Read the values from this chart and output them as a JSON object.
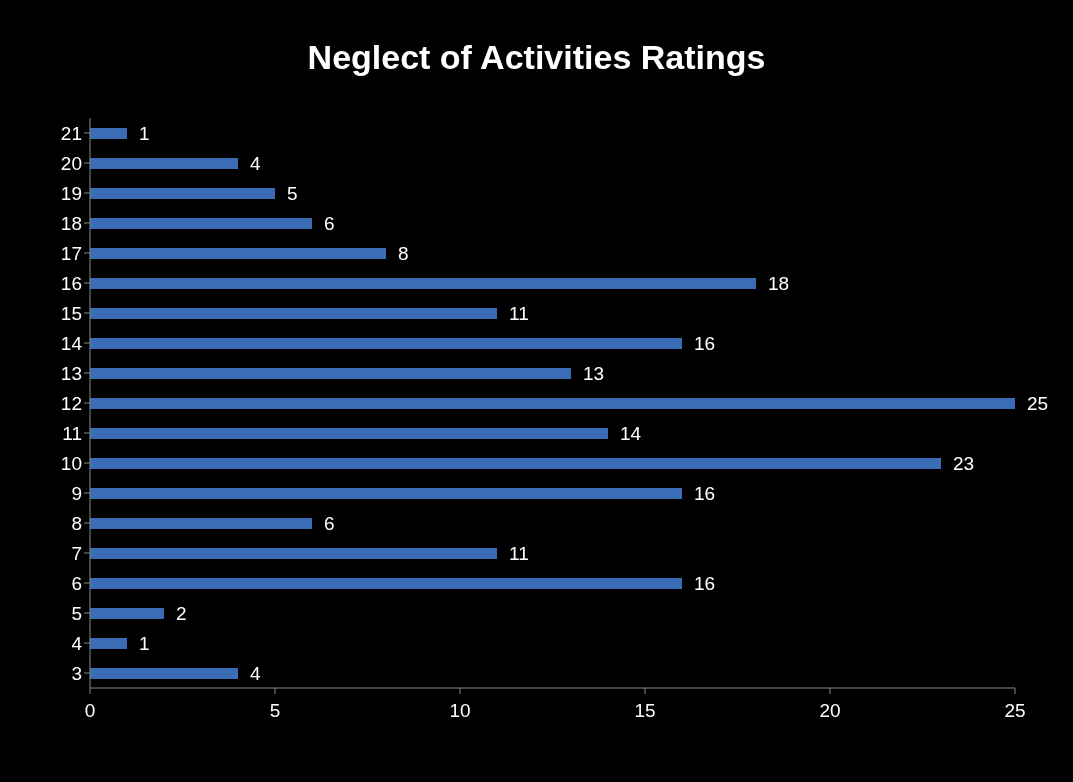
{
  "chart_data": {
    "type": "bar",
    "orientation": "horizontal",
    "title": "Neglect of Activities Ratings",
    "categories": [
      "21",
      "20",
      "19",
      "18",
      "17",
      "16",
      "15",
      "14",
      "13",
      "12",
      "11",
      "10",
      "9",
      "8",
      "7",
      "6",
      "5",
      "4",
      "3"
    ],
    "values": [
      1,
      4,
      5,
      6,
      8,
      18,
      11,
      16,
      13,
      25,
      14,
      23,
      16,
      6,
      11,
      16,
      2,
      1,
      4
    ],
    "color": "#3a6db5",
    "xlim": [
      0,
      25
    ],
    "xticks": [
      0,
      5,
      10,
      15,
      20,
      25
    ],
    "grid": false,
    "legend": false,
    "data_labels": true
  }
}
